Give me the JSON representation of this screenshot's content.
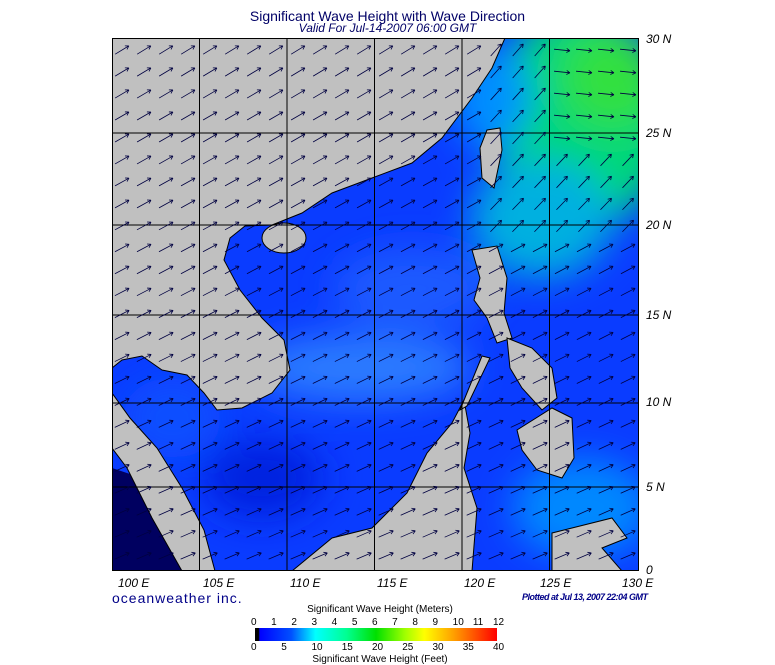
{
  "title": "Significant Wave Height with Wave Direction",
  "subtitle": "Valid For Jul-14-2007 06:00 GMT",
  "lon_labels": [
    "100 E",
    "105 E",
    "110 E",
    "115 E",
    "120 E",
    "125 E",
    "130 E"
  ],
  "lat_labels": [
    "30 N",
    "25 N",
    "20 N",
    "15 N",
    "10 N",
    "5 N",
    "0"
  ],
  "brand": "oceanweather inc.",
  "plotted": "Plotted at Jul 13, 2007 22:04 GMT",
  "colorbar": {
    "title_top": "Significant Wave Height (Meters)",
    "title_bottom": "Significant Wave Height (Feet)",
    "meters": [
      "0",
      "1",
      "2",
      "3",
      "4",
      "5",
      "6",
      "7",
      "8",
      "9",
      "10",
      "11",
      "12"
    ],
    "feet": [
      "0",
      "5",
      "10",
      "15",
      "20",
      "25",
      "30",
      "35",
      "40"
    ],
    "colors": [
      "#000000",
      "#0000ff",
      "#0060ff",
      "#00ffff",
      "#00ff80",
      "#00e000",
      "#80ff00",
      "#ffff00",
      "#ff9900",
      "#ff0000"
    ]
  },
  "colors": {
    "land": "#c0c0c0",
    "sea_base": "#0a3cff",
    "grid": "#000000"
  }
}
